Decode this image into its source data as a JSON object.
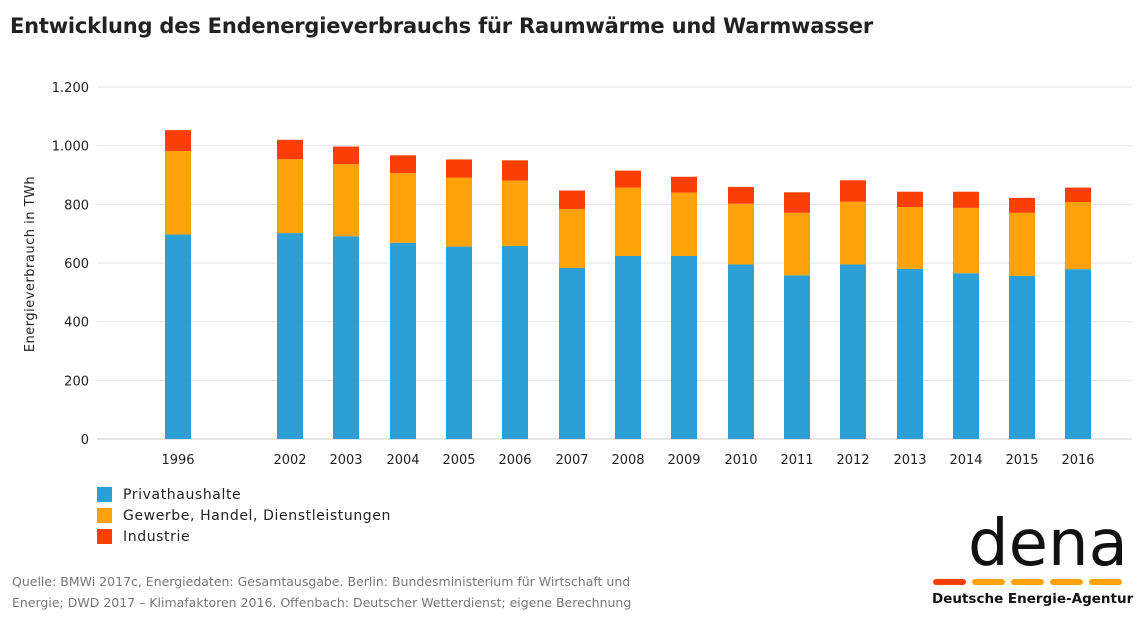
{
  "title": "Entwicklung des Endenergieverbrauchs für Raumwärme und Warmwasser",
  "colors": {
    "privat": "#2b9fd6",
    "gewerbe": "#fda20a",
    "industrie": "#fb3d06",
    "axis": "#cccccc",
    "grid": "#e6e6e6"
  },
  "legend": [
    {
      "label": "Privathaushalte",
      "color": "#2b9fd6"
    },
    {
      "label": "Gewerbe, Handel, Dienstleistungen",
      "color": "#fda20a"
    },
    {
      "label": "Industrie",
      "color": "#fb3d06"
    }
  ],
  "source_line1": "Quelle: BMWi 2017c, Energiedaten: Gesamtausgabe. Berlin: Bundesministerium für Wirtschaft und",
  "source_line2": "Energie; DWD 2017 – Klimafaktoren 2016. Offenbach: Deutscher Wetterdienst; eigene Berechnung",
  "logo": {
    "word": "dena",
    "subtitle": "Deutsche Energie-Agentur",
    "dash_colors": [
      "#fb3d06",
      "#fda20a",
      "#fda20a",
      "#fda20a",
      "#fda20a"
    ]
  },
  "chart_data": {
    "type": "bar",
    "stacked": true,
    "ylabel": "Energieverbrauch in TWh",
    "xlabel": "",
    "ylim": [
      0,
      1200
    ],
    "yticks": [
      0,
      200,
      400,
      600,
      800,
      1000,
      1200
    ],
    "ytick_labels": [
      "0",
      "200",
      "400",
      "600",
      "800",
      "1.000",
      "1.200"
    ],
    "grid": true,
    "categories": [
      "1996",
      "2002",
      "2003",
      "2004",
      "2005",
      "2006",
      "2007",
      "2008",
      "2009",
      "2010",
      "2011",
      "2012",
      "2013",
      "2014",
      "2015",
      "2016"
    ],
    "series": [
      {
        "name": "Privathaushalte",
        "values": [
          697,
          702,
          691,
          669,
          656,
          658,
          583,
          624,
          624,
          595,
          558,
          595,
          580,
          565,
          556,
          579
        ]
      },
      {
        "name": "Gewerbe, Handel, Dienstleistungen",
        "values": [
          285,
          252,
          246,
          237,
          235,
          223,
          201,
          233,
          216,
          207,
          213,
          214,
          211,
          223,
          215,
          229
        ]
      },
      {
        "name": "Industrie",
        "values": [
          71,
          66,
          60,
          61,
          62,
          69,
          63,
          58,
          54,
          57,
          70,
          73,
          52,
          55,
          51,
          49
        ]
      }
    ],
    "legend_position": "bottom-left"
  }
}
